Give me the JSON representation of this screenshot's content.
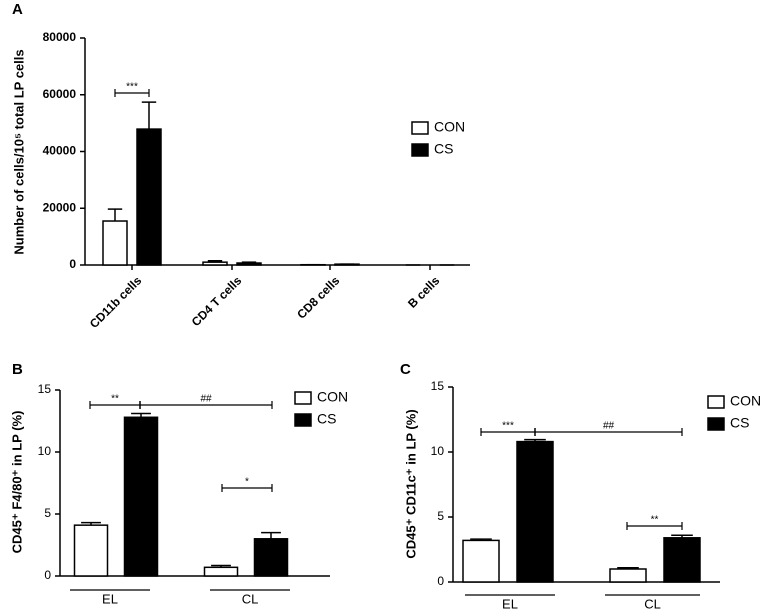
{
  "chart_data": [
    {
      "type": "bar",
      "label": "A",
      "y_label": "Number of cells/10⁵ total LP cells",
      "categories": [
        "CD11b cells",
        "CD4 T cells",
        "CD8 cells",
        "B cells"
      ],
      "series": [
        {
          "name": "CON",
          "color": "#ffffff",
          "values": [
            15500,
            1000,
            100,
            0
          ],
          "errors": [
            4200,
            500,
            0,
            0
          ]
        },
        {
          "name": "CS",
          "color": "#000000",
          "values": [
            47900,
            700,
            300,
            0
          ],
          "errors": [
            9500,
            300,
            0,
            0
          ]
        }
      ],
      "ylim": [
        0,
        80000
      ],
      "yticks": [
        0,
        20000,
        40000,
        60000,
        80000
      ],
      "annotations": [
        "***"
      ]
    },
    {
      "type": "bar",
      "label": "B",
      "y_label": "CD45⁺ F4/80⁺ in LP (%)",
      "categories": [
        "EL",
        "CL"
      ],
      "series": [
        {
          "name": "CON",
          "color": "#ffffff",
          "values": [
            4.1,
            0.7
          ],
          "errors": [
            0.2,
            0.15
          ]
        },
        {
          "name": "CS",
          "color": "#000000",
          "values": [
            12.8,
            3.0
          ],
          "errors": [
            0.3,
            0.5
          ]
        }
      ],
      "ylim": [
        0,
        15
      ],
      "yticks": [
        0,
        5,
        10,
        15
      ],
      "annotations": [
        "**",
        "##",
        "*"
      ]
    },
    {
      "type": "bar",
      "label": "C",
      "y_label": "CD45⁺ CD11c⁺ in LP (%)",
      "categories": [
        "EL",
        "CL"
      ],
      "series": [
        {
          "name": "CON",
          "color": "#ffffff",
          "values": [
            3.2,
            1.0
          ],
          "errors": [
            0.1,
            0.1
          ]
        },
        {
          "name": "CS",
          "color": "#000000",
          "values": [
            10.8,
            3.4
          ],
          "errors": [
            0.15,
            0.2
          ]
        }
      ],
      "ylim": [
        0,
        15
      ],
      "yticks": [
        0,
        5,
        10,
        15
      ],
      "annotations": [
        "***",
        "##",
        "**"
      ]
    }
  ]
}
